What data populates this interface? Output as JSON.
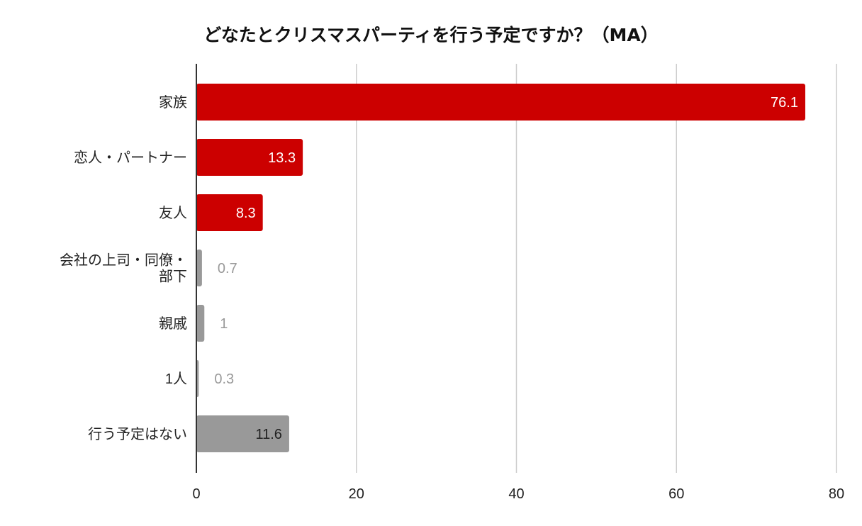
{
  "chart_data": {
    "type": "bar",
    "orientation": "horizontal",
    "title": "どなたとクリスマスパーティを行う予定ですか？（MA）",
    "xlabel": "",
    "ylabel": "",
    "xlim": [
      0,
      80
    ],
    "x_ticks": [
      "0",
      "20",
      "40",
      "60",
      "80"
    ],
    "grid": true,
    "legend": "none",
    "categories": [
      "家族",
      "恋人・パートナー",
      "友人",
      "会社の上司・同僚・部下",
      "親戚",
      "1人",
      "行う予定はない"
    ],
    "category_lines": [
      [
        "家族"
      ],
      [
        "恋人・パートナー"
      ],
      [
        "友人"
      ],
      [
        "会社の上司・同僚・",
        "部下"
      ],
      [
        "親戚"
      ],
      [
        "1人"
      ],
      [
        "行う予定はない"
      ]
    ],
    "values": [
      76.1,
      13.3,
      8.3,
      0.7,
      1,
      0.3,
      11.6
    ],
    "value_labels": [
      "76.1",
      "13.3",
      "8.3",
      "0.7",
      "1",
      "0.3",
      "11.6"
    ],
    "bar_colors": [
      "#cc0000",
      "#cc0000",
      "#cc0000",
      "#999999",
      "#999999",
      "#999999",
      "#999999"
    ],
    "colors": {
      "highlight": "#cc0000",
      "neutral": "#999999",
      "label_inside": "#ffffff",
      "label_outside_muted": "#999999",
      "label_inside_dark": "#222222",
      "grid": "#cccccc",
      "axis": "#333333",
      "text": "#222222"
    }
  }
}
